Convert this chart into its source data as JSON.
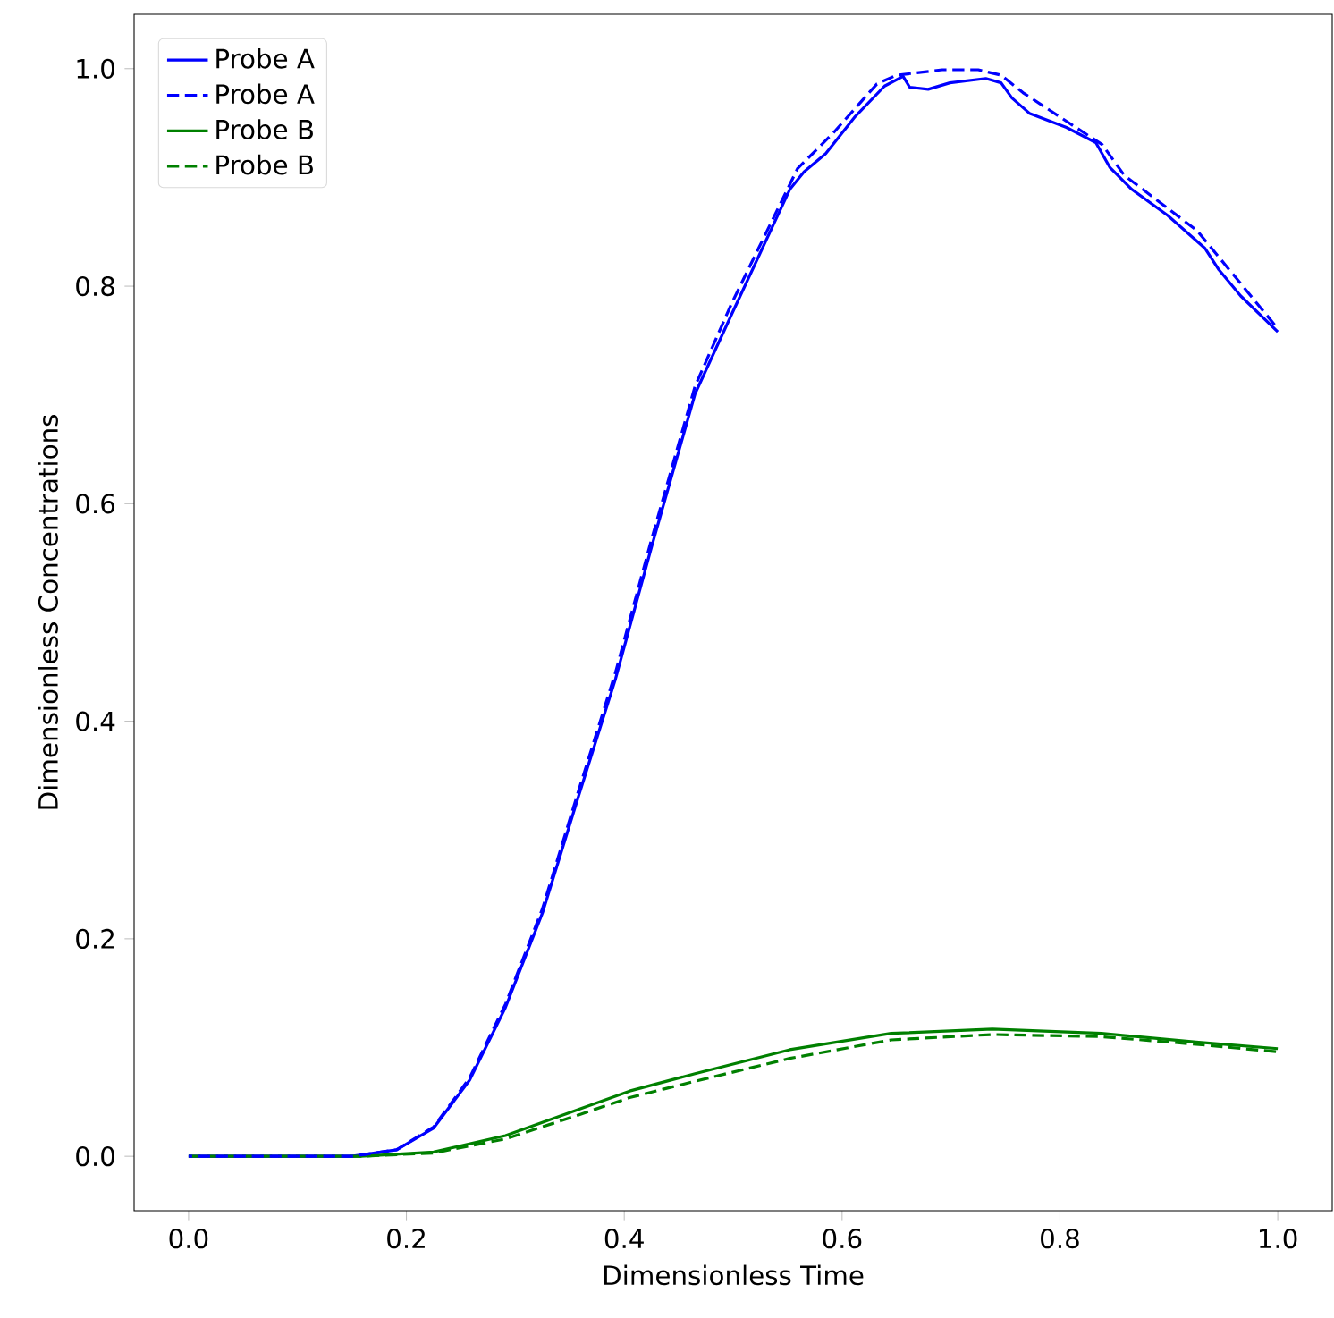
{
  "chart_data": {
    "type": "line",
    "xlabel": "Dimensionless Time",
    "ylabel": "Dimensionless Concentrations",
    "xlim": [
      -0.05,
      1.05
    ],
    "ylim": [
      -0.05,
      1.05
    ],
    "xticks": [
      {
        "value": 0,
        "label": "0.0"
      },
      {
        "value": 0.2,
        "label": "0.2"
      },
      {
        "value": 0.4,
        "label": "0.4"
      },
      {
        "value": 0.6,
        "label": "0.6"
      },
      {
        "value": 0.8,
        "label": "0.8"
      },
      {
        "value": 1,
        "label": "1.0"
      }
    ],
    "yticks": [
      {
        "value": 0,
        "label": "0.0"
      },
      {
        "value": 0.2,
        "label": "0.2"
      },
      {
        "value": 0.4,
        "label": "0.4"
      },
      {
        "value": 0.6,
        "label": "0.6"
      },
      {
        "value": 0.8,
        "label": "0.8"
      },
      {
        "value": 1,
        "label": "1.0"
      }
    ],
    "grid": false,
    "legend": "top left",
    "marker": "none",
    "series": [
      {
        "name": "Probe A",
        "color": "#0000ff",
        "line_style": "solid",
        "x": [
          0,
          0.15,
          0.191,
          0.225,
          0.258,
          0.291,
          0.325,
          0.358,
          0.392,
          0.425,
          0.465,
          0.499,
          0.552,
          0.565,
          0.585,
          0.612,
          0.639,
          0.656,
          0.662,
          0.679,
          0.699,
          0.732,
          0.746,
          0.756,
          0.772,
          0.806,
          0.833,
          0.846,
          0.866,
          0.899,
          0.933,
          0.946,
          0.966,
          1.0
        ],
        "values": [
          0,
          0,
          0.006,
          0.026,
          0.07,
          0.137,
          0.224,
          0.331,
          0.439,
          0.56,
          0.701,
          0.775,
          0.889,
          0.905,
          0.922,
          0.956,
          0.984,
          0.993,
          0.983,
          0.981,
          0.987,
          0.991,
          0.987,
          0.973,
          0.959,
          0.946,
          0.932,
          0.909,
          0.889,
          0.865,
          0.835,
          0.815,
          0.791,
          0.758
        ]
      },
      {
        "name": "Probe A",
        "color": "#0000ff",
        "line_style": "dashed",
        "x": [
          0,
          0.15,
          0.191,
          0.225,
          0.258,
          0.291,
          0.325,
          0.358,
          0.392,
          0.425,
          0.465,
          0.499,
          0.559,
          0.592,
          0.632,
          0.65,
          0.692,
          0.725,
          0.746,
          0.766,
          0.839,
          0.859,
          0.926,
          1.0
        ],
        "values": [
          0,
          0,
          0.006,
          0.027,
          0.072,
          0.14,
          0.228,
          0.336,
          0.445,
          0.567,
          0.708,
          0.785,
          0.908,
          0.941,
          0.986,
          0.994,
          0.999,
          0.999,
          0.994,
          0.978,
          0.93,
          0.902,
          0.851,
          0.761
        ]
      },
      {
        "name": "Probe B",
        "color": "#008000",
        "line_style": "solid",
        "x": [
          0,
          0.158,
          0.225,
          0.291,
          0.358,
          0.405,
          0.465,
          0.552,
          0.645,
          0.738,
          0.838,
          0.925,
          1.0
        ],
        "values": [
          0,
          0,
          0.004,
          0.019,
          0.043,
          0.06,
          0.076,
          0.098,
          0.113,
          0.117,
          0.113,
          0.105,
          0.099
        ]
      },
      {
        "name": "Probe B",
        "color": "#008000",
        "line_style": "dashed",
        "x": [
          0,
          0.158,
          0.225,
          0.291,
          0.358,
          0.405,
          0.465,
          0.552,
          0.645,
          0.738,
          0.838,
          0.925,
          1.0
        ],
        "values": [
          0,
          0,
          0.003,
          0.016,
          0.038,
          0.054,
          0.069,
          0.09,
          0.107,
          0.112,
          0.11,
          0.103,
          0.096
        ]
      }
    ]
  }
}
